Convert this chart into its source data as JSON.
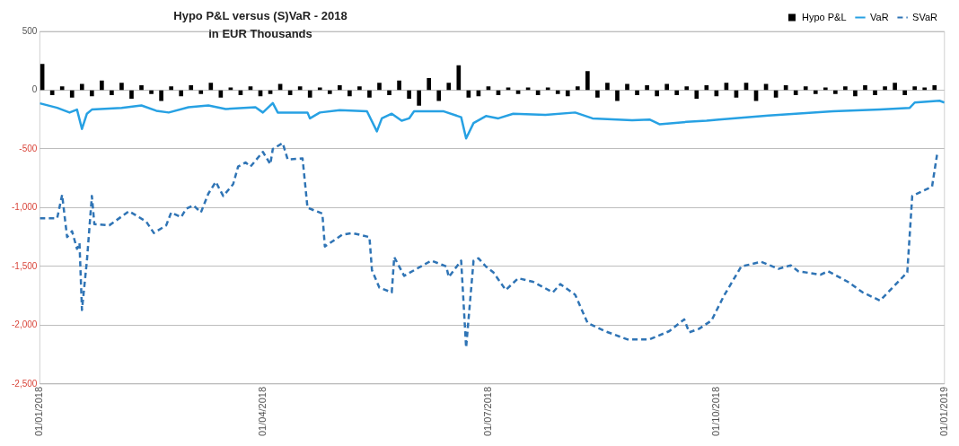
{
  "chart_data": {
    "type": "line",
    "title": "Hypo P&L versus (S)VaR - 2018",
    "subtitle": "in EUR Thousands",
    "xlim": [
      "2018-01-01",
      "2019-01-01"
    ],
    "xticks": [
      {
        "value": "2018-01-01",
        "label": "01/01/2018"
      },
      {
        "value": "2018-04-01",
        "label": "01/04/2018"
      },
      {
        "value": "2018-07-01",
        "label": "01/07/2018"
      },
      {
        "value": "2018-10-01",
        "label": "01/10/2018"
      },
      {
        "value": "2019-01-01",
        "label": "01/01/2019"
      }
    ],
    "ylim": [
      -2500,
      500
    ],
    "yticks": [
      {
        "value": -2500,
        "label": "-2,500"
      },
      {
        "value": -2000,
        "label": "-2,000"
      },
      {
        "value": -1500,
        "label": "-1,500"
      },
      {
        "value": -1000,
        "label": "-1,000"
      },
      {
        "value": -500,
        "label": "-500"
      },
      0,
      500
    ],
    "grid": "y",
    "legend": "top right",
    "marker": "none",
    "series": [
      {
        "name": "Hypo P&L",
        "type": "bar",
        "color": "#000000",
        "x": [
          "2018-01-02",
          "2018-01-06",
          "2018-01-10",
          "2018-01-14",
          "2018-01-18",
          "2018-01-22",
          "2018-01-26",
          "2018-01-30",
          "2018-02-03",
          "2018-02-07",
          "2018-02-11",
          "2018-02-15",
          "2018-02-19",
          "2018-02-23",
          "2018-02-27",
          "2018-03-03",
          "2018-03-07",
          "2018-03-11",
          "2018-03-15",
          "2018-03-19",
          "2018-03-23",
          "2018-03-27",
          "2018-03-31",
          "2018-04-04",
          "2018-04-08",
          "2018-04-12",
          "2018-04-16",
          "2018-04-20",
          "2018-04-24",
          "2018-04-28",
          "2018-05-02",
          "2018-05-06",
          "2018-05-10",
          "2018-05-14",
          "2018-05-18",
          "2018-05-22",
          "2018-05-26",
          "2018-05-30",
          "2018-06-03",
          "2018-06-07",
          "2018-06-11",
          "2018-06-15",
          "2018-06-19",
          "2018-06-23",
          "2018-06-27",
          "2018-07-01",
          "2018-07-05",
          "2018-07-09",
          "2018-07-13",
          "2018-07-17",
          "2018-07-21",
          "2018-07-25",
          "2018-07-29",
          "2018-08-02",
          "2018-08-06",
          "2018-08-10",
          "2018-08-14",
          "2018-08-18",
          "2018-08-22",
          "2018-08-26",
          "2018-08-30",
          "2018-09-03",
          "2018-09-07",
          "2018-09-11",
          "2018-09-15",
          "2018-09-19",
          "2018-09-23",
          "2018-09-27",
          "2018-10-01",
          "2018-10-05",
          "2018-10-09",
          "2018-10-13",
          "2018-10-17",
          "2018-10-21",
          "2018-10-25",
          "2018-10-29",
          "2018-11-02",
          "2018-11-06",
          "2018-11-10",
          "2018-11-14",
          "2018-11-18",
          "2018-11-22",
          "2018-11-26",
          "2018-11-30",
          "2018-12-04",
          "2018-12-08",
          "2018-12-12",
          "2018-12-16",
          "2018-12-20",
          "2018-12-24",
          "2018-12-28"
        ],
        "values": [
          220,
          -40,
          30,
          -60,
          50,
          -50,
          80,
          -40,
          60,
          -70,
          40,
          -30,
          -90,
          30,
          -50,
          40,
          -30,
          60,
          -60,
          20,
          -40,
          30,
          -50,
          -30,
          50,
          -40,
          30,
          -60,
          20,
          -30,
          40,
          -50,
          30,
          -60,
          60,
          -40,
          80,
          -70,
          -130,
          100,
          -90,
          60,
          210,
          -60,
          -50,
          30,
          -40,
          20,
          -30,
          20,
          -40,
          20,
          -30,
          -50,
          30,
          160,
          -60,
          60,
          -90,
          50,
          -40,
          40,
          -50,
          50,
          -40,
          30,
          -70,
          40,
          -50,
          60,
          -60,
          60,
          -90,
          50,
          -60,
          40,
          -40,
          30,
          -30,
          20,
          -30,
          30,
          -50,
          40,
          -40,
          30,
          60,
          -40,
          30,
          20,
          40
        ]
      },
      {
        "name": "VaR",
        "color": "#27a1e3",
        "line_style": "solid",
        "x": [
          "2018-01-01",
          "2018-01-08",
          "2018-01-13",
          "2018-01-16",
          "2018-01-18",
          "2018-01-20",
          "2018-01-22",
          "2018-02-03",
          "2018-02-11",
          "2018-02-17",
          "2018-02-22",
          "2018-03-02",
          "2018-03-10",
          "2018-03-17",
          "2018-03-29",
          "2018-04-01",
          "2018-04-05",
          "2018-04-07",
          "2018-04-19",
          "2018-04-20",
          "2018-04-24",
          "2018-05-02",
          "2018-05-13",
          "2018-05-17",
          "2018-05-19",
          "2018-05-23",
          "2018-05-27",
          "2018-05-30",
          "2018-06-01",
          "2018-06-13",
          "2018-06-20",
          "2018-06-22",
          "2018-06-25",
          "2018-06-30",
          "2018-07-05",
          "2018-07-11",
          "2018-07-24",
          "2018-08-05",
          "2018-08-12",
          "2018-08-28",
          "2018-09-04",
          "2018-09-08",
          "2018-09-19",
          "2018-09-27",
          "2018-10-02",
          "2018-10-22",
          "2018-11-17",
          "2018-12-06",
          "2018-12-18",
          "2018-12-20",
          "2018-12-30",
          "2019-01-01"
        ],
        "values": [
          -112,
          -150,
          -190,
          -165,
          -330,
          -200,
          -165,
          -150,
          -130,
          -175,
          -190,
          -145,
          -130,
          -160,
          -145,
          -190,
          -110,
          -190,
          -190,
          -240,
          -190,
          -170,
          -180,
          -350,
          -240,
          -200,
          -260,
          -240,
          -180,
          -180,
          -230,
          -410,
          -280,
          -220,
          -240,
          -200,
          -210,
          -190,
          -240,
          -255,
          -250,
          -290,
          -270,
          -260,
          -250,
          -215,
          -180,
          -165,
          -150,
          -105,
          -90,
          -105
        ]
      },
      {
        "name": "SVaR",
        "color": "#2f74b5",
        "line_style": "dashed",
        "x": [
          "2018-01-01",
          "2018-01-08",
          "2018-01-10",
          "2018-01-12",
          "2018-01-14",
          "2018-01-16",
          "2018-01-17",
          "2018-01-18",
          "2018-01-20",
          "2018-01-22",
          "2018-01-23",
          "2018-01-29",
          "2018-02-06",
          "2018-02-10",
          "2018-02-13",
          "2018-02-16",
          "2018-02-21",
          "2018-02-23",
          "2018-02-27",
          "2018-03-01",
          "2018-03-04",
          "2018-03-07",
          "2018-03-10",
          "2018-03-13",
          "2018-03-16",
          "2018-03-20",
          "2018-03-22",
          "2018-03-25",
          "2018-03-27",
          "2018-03-31",
          "2018-04-01",
          "2018-04-04",
          "2018-04-05",
          "2018-04-09",
          "2018-04-11",
          "2018-04-17",
          "2018-04-19",
          "2018-04-25",
          "2018-04-26",
          "2018-05-03",
          "2018-05-07",
          "2018-05-14",
          "2018-05-15",
          "2018-05-18",
          "2018-05-23",
          "2018-05-24",
          "2018-05-28",
          "2018-06-02",
          "2018-06-08",
          "2018-06-14",
          "2018-06-15",
          "2018-06-20",
          "2018-06-22",
          "2018-06-25",
          "2018-06-27",
          "2018-06-30",
          "2018-07-03",
          "2018-07-08",
          "2018-07-13",
          "2018-07-19",
          "2018-07-27",
          "2018-07-30",
          "2018-08-05",
          "2018-08-10",
          "2018-08-17",
          "2018-08-26",
          "2018-09-04",
          "2018-09-12",
          "2018-09-18",
          "2018-09-20",
          "2018-09-24",
          "2018-09-29",
          "2018-10-04",
          "2018-10-11",
          "2018-10-19",
          "2018-10-26",
          "2018-10-31",
          "2018-11-03",
          "2018-11-12",
          "2018-11-15",
          "2018-11-23",
          "2018-11-29",
          "2018-12-06",
          "2018-12-17",
          "2018-12-19",
          "2018-12-23",
          "2018-12-27",
          "2018-12-29"
        ],
        "values": [
          -1090,
          -1090,
          -890,
          -1250,
          -1200,
          -1350,
          -1300,
          -1870,
          -1450,
          -900,
          -1140,
          -1150,
          -1030,
          -1080,
          -1120,
          -1215,
          -1150,
          -1040,
          -1080,
          -1010,
          -980,
          -1040,
          -880,
          -780,
          -900,
          -800,
          -650,
          -615,
          -650,
          -550,
          -525,
          -630,
          -500,
          -450,
          -590,
          -580,
          -1000,
          -1050,
          -1330,
          -1230,
          -1215,
          -1250,
          -1530,
          -1680,
          -1720,
          -1420,
          -1580,
          -1520,
          -1450,
          -1500,
          -1590,
          -1450,
          -2190,
          -1450,
          -1430,
          -1500,
          -1550,
          -1700,
          -1600,
          -1630,
          -1720,
          -1650,
          -1740,
          -1980,
          -2050,
          -2120,
          -2120,
          -2050,
          -1950,
          -2060,
          -2030,
          -1960,
          -1750,
          -1500,
          -1460,
          -1520,
          -1490,
          -1540,
          -1570,
          -1540,
          -1630,
          -1720,
          -1790,
          -1550,
          -900,
          -860,
          -820,
          -550
        ]
      }
    ]
  }
}
